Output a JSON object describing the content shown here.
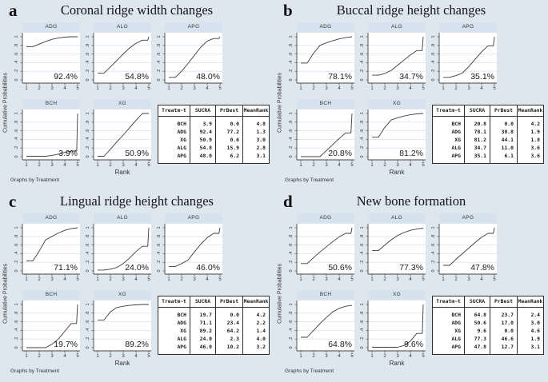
{
  "figure": {
    "ylabel": "Cumulative Probabilities",
    "xlabel": "Rank",
    "footnote": "Graphs by Treatment",
    "table_headers": [
      "Treatm~t",
      "SUCRA",
      "PrBest",
      "MeanRank"
    ],
    "x_ticks": [
      "1",
      "2",
      "3",
      "4",
      "5"
    ],
    "y_ticks": [
      "0",
      ".2",
      ".4",
      ".6",
      ".8",
      "1"
    ],
    "colors": {
      "background": "#dee7ee",
      "subplot_header": "#d6e3ee",
      "plot_background": "#ffffff",
      "gridline": "#dce8f3",
      "curve": "#3c3c3c",
      "axis": "#444444",
      "table_border": "#2e2e2e"
    }
  },
  "chart_data": [
    {
      "type": "line",
      "letter": "a",
      "title": "Coronal ridge width changes",
      "xlabel": "Rank",
      "ylabel": "Cumulative Probabilities",
      "xlim": [
        1,
        5
      ],
      "ylim": [
        0,
        1
      ],
      "grid": true,
      "subplots": [
        {
          "name": "ADG",
          "pct": "92.4%",
          "points": [
            [
              1,
              0.77
            ],
            [
              1.5,
              0.77
            ],
            [
              2,
              0.83
            ],
            [
              2.5,
              0.89
            ],
            [
              3,
              0.94
            ],
            [
              3.5,
              0.97
            ],
            [
              4,
              0.99
            ],
            [
              4.5,
              1
            ],
            [
              5,
              1
            ]
          ]
        },
        {
          "name": "ALG",
          "pct": "54.8%",
          "points": [
            [
              1,
              0.16
            ],
            [
              1.5,
              0.16
            ],
            [
              2,
              0.3
            ],
            [
              2.5,
              0.45
            ],
            [
              3,
              0.6
            ],
            [
              3.5,
              0.74
            ],
            [
              4,
              0.85
            ],
            [
              4.5,
              0.92
            ],
            [
              4.92,
              0.92
            ],
            [
              5,
              1
            ]
          ]
        },
        {
          "name": "APG",
          "pct": "48.0%",
          "points": [
            [
              1,
              0.06
            ],
            [
              1.5,
              0.06
            ],
            [
              2,
              0.2
            ],
            [
              2.5,
              0.38
            ],
            [
              3,
              0.57
            ],
            [
              3.5,
              0.76
            ],
            [
              4,
              0.9
            ],
            [
              4.5,
              0.96
            ],
            [
              4.92,
              0.96
            ],
            [
              5,
              1
            ]
          ]
        },
        {
          "name": "BCH",
          "pct": "3.9%",
          "points": [
            [
              1,
              0.01
            ],
            [
              2.5,
              0.01
            ],
            [
              3,
              0.03
            ],
            [
              3.5,
              0.06
            ],
            [
              4,
              0.1
            ],
            [
              4.5,
              0.13
            ],
            [
              4.93,
              0.13
            ],
            [
              5,
              1
            ]
          ]
        },
        {
          "name": "XG",
          "pct": "50.9%",
          "points": [
            [
              1,
              0.01
            ],
            [
              1.5,
              0.01
            ],
            [
              2,
              0.17
            ],
            [
              2.5,
              0.34
            ],
            [
              3,
              0.5
            ],
            [
              3.5,
              0.67
            ],
            [
              4,
              0.84
            ],
            [
              4.5,
              1
            ],
            [
              5,
              1
            ]
          ]
        }
      ],
      "table": {
        "rows": [
          [
            "BCH",
            "3.9",
            "0.0",
            "4.8"
          ],
          [
            "ADG",
            "92.4",
            "77.2",
            "1.3"
          ],
          [
            "XG",
            "50.9",
            "0.6",
            "3.0"
          ],
          [
            "ALG",
            "54.8",
            "15.9",
            "2.8"
          ],
          [
            "APG",
            "48.0",
            "6.2",
            "3.1"
          ]
        ]
      }
    },
    {
      "type": "line",
      "letter": "b",
      "title": "Buccal ridge height changes",
      "xlabel": "Rank",
      "ylabel": "Cumulative Probabilities",
      "xlim": [
        1,
        5
      ],
      "ylim": [
        0,
        1
      ],
      "grid": true,
      "subplots": [
        {
          "name": "ADG",
          "pct": "78.1%",
          "points": [
            [
              1,
              0.39
            ],
            [
              1.5,
              0.39
            ],
            [
              2,
              0.62
            ],
            [
              2.5,
              0.8
            ],
            [
              3,
              0.86
            ],
            [
              3.5,
              0.91
            ],
            [
              4,
              0.95
            ],
            [
              4.5,
              0.98
            ],
            [
              5,
              1
            ]
          ]
        },
        {
          "name": "ALG",
          "pct": "34.7%",
          "points": [
            [
              1,
              0.11
            ],
            [
              1.5,
              0.11
            ],
            [
              2,
              0.15
            ],
            [
              2.5,
              0.22
            ],
            [
              3,
              0.34
            ],
            [
              3.5,
              0.46
            ],
            [
              4,
              0.58
            ],
            [
              4.5,
              0.68
            ],
            [
              4.92,
              0.68
            ],
            [
              5,
              1
            ]
          ]
        },
        {
          "name": "APG",
          "pct": "35.1%",
          "points": [
            [
              1,
              0.06
            ],
            [
              1.5,
              0.06
            ],
            [
              2,
              0.1
            ],
            [
              2.5,
              0.16
            ],
            [
              3,
              0.31
            ],
            [
              3.5,
              0.48
            ],
            [
              4,
              0.65
            ],
            [
              4.5,
              0.79
            ],
            [
              4.92,
              0.79
            ],
            [
              5,
              1
            ]
          ]
        },
        {
          "name": "BCH",
          "pct": "20.8%",
          "points": [
            [
              1,
              0
            ],
            [
              2.5,
              0
            ],
            [
              3,
              0.14
            ],
            [
              3.5,
              0.28
            ],
            [
              4,
              0.42
            ],
            [
              4.5,
              0.55
            ],
            [
              4.92,
              0.55
            ],
            [
              5,
              1
            ]
          ]
        },
        {
          "name": "XG",
          "pct": "81.2%",
          "points": [
            [
              1,
              0.45
            ],
            [
              1.5,
              0.45
            ],
            [
              2,
              0.68
            ],
            [
              2.5,
              0.85
            ],
            [
              3,
              0.9
            ],
            [
              3.5,
              0.94
            ],
            [
              4,
              0.97
            ],
            [
              4.5,
              0.99
            ],
            [
              5,
              1
            ]
          ]
        }
      ],
      "table": {
        "rows": [
          [
            "BCH",
            "20.8",
            "0.0",
            "4.2"
          ],
          [
            "ADG",
            "78.1",
            "38.8",
            "1.9"
          ],
          [
            "XG",
            "81.2",
            "44.1",
            "1.8"
          ],
          [
            "ALG",
            "34.7",
            "11.0",
            "3.6"
          ],
          [
            "APG",
            "35.1",
            "6.1",
            "3.6"
          ]
        ]
      }
    },
    {
      "type": "line",
      "letter": "c",
      "title": "Lingual ridge height changes",
      "xlabel": "Rank",
      "ylabel": "Cumulative Probabilities",
      "xlim": [
        1,
        5
      ],
      "ylim": [
        0,
        1
      ],
      "grid": true,
      "subplots": [
        {
          "name": "ADG",
          "pct": "71.1%",
          "points": [
            [
              1,
              0.23
            ],
            [
              1.5,
              0.23
            ],
            [
              2,
              0.46
            ],
            [
              2.5,
              0.72
            ],
            [
              3,
              0.8
            ],
            [
              3.5,
              0.88
            ],
            [
              4,
              0.94
            ],
            [
              4.5,
              0.98
            ],
            [
              5,
              1
            ]
          ]
        },
        {
          "name": "ALG",
          "pct": "24.0%",
          "points": [
            [
              1,
              0.02
            ],
            [
              1.5,
              0.02
            ],
            [
              2,
              0.04
            ],
            [
              2.5,
              0.08
            ],
            [
              3,
              0.17
            ],
            [
              3.5,
              0.3
            ],
            [
              4,
              0.45
            ],
            [
              4.5,
              0.57
            ],
            [
              4.92,
              0.57
            ],
            [
              5,
              1
            ]
          ]
        },
        {
          "name": "APG",
          "pct": "46.0%",
          "points": [
            [
              1,
              0.1
            ],
            [
              1.5,
              0.1
            ],
            [
              2,
              0.17
            ],
            [
              2.5,
              0.25
            ],
            [
              3,
              0.44
            ],
            [
              3.5,
              0.62
            ],
            [
              4,
              0.77
            ],
            [
              4.5,
              0.87
            ],
            [
              4.92,
              0.87
            ],
            [
              5,
              1
            ]
          ]
        },
        {
          "name": "BCH",
          "pct": "19.7%",
          "points": [
            [
              1,
              0
            ],
            [
              2.5,
              0
            ],
            [
              3,
              0.08
            ],
            [
              3.5,
              0.2
            ],
            [
              4,
              0.38
            ],
            [
              4.5,
              0.56
            ],
            [
              4.92,
              0.56
            ],
            [
              5,
              1
            ]
          ]
        },
        {
          "name": "XG",
          "pct": "89.2%",
          "points": [
            [
              1,
              0.64
            ],
            [
              1.5,
              0.64
            ],
            [
              2,
              0.83
            ],
            [
              2.5,
              0.93
            ],
            [
              3,
              0.96
            ],
            [
              3.5,
              0.98
            ],
            [
              4,
              0.99
            ],
            [
              4.5,
              1
            ],
            [
              5,
              1
            ]
          ]
        }
      ],
      "table": {
        "rows": [
          [
            "BCH",
            "19.7",
            "0.0",
            "4.2"
          ],
          [
            "ADG",
            "71.1",
            "23.4",
            "2.2"
          ],
          [
            "XG",
            "89.2",
            "64.2",
            "1.4"
          ],
          [
            "ALG",
            "24.0",
            "2.3",
            "4.0"
          ],
          [
            "APG",
            "46.0",
            "10.2",
            "3.2"
          ]
        ]
      }
    },
    {
      "type": "line",
      "letter": "d",
      "title": "New bone formation",
      "xlabel": "Rank",
      "ylabel": "Cumulative Probabilities",
      "xlim": [
        1,
        5
      ],
      "ylim": [
        0,
        1
      ],
      "grid": true,
      "subplots": [
        {
          "name": "ADG",
          "pct": "50.6%",
          "points": [
            [
              1,
              0.17
            ],
            [
              1.5,
              0.17
            ],
            [
              2,
              0.31
            ],
            [
              2.5,
              0.44
            ],
            [
              3,
              0.56
            ],
            [
              3.5,
              0.68
            ],
            [
              4,
              0.79
            ],
            [
              4.5,
              0.87
            ],
            [
              4.92,
              0.87
            ],
            [
              5,
              1
            ]
          ]
        },
        {
          "name": "ALG",
          "pct": "77.3%",
          "points": [
            [
              1,
              0.47
            ],
            [
              1.5,
              0.47
            ],
            [
              2,
              0.6
            ],
            [
              2.5,
              0.72
            ],
            [
              3,
              0.82
            ],
            [
              3.5,
              0.89
            ],
            [
              4,
              0.94
            ],
            [
              4.5,
              0.97
            ],
            [
              5,
              0.99
            ]
          ]
        },
        {
          "name": "APG",
          "pct": "47.8%",
          "points": [
            [
              1,
              0.13
            ],
            [
              1.5,
              0.13
            ],
            [
              2,
              0.27
            ],
            [
              2.5,
              0.4
            ],
            [
              3,
              0.53
            ],
            [
              3.5,
              0.66
            ],
            [
              4,
              0.78
            ],
            [
              4.5,
              0.87
            ],
            [
              4.92,
              0.87
            ],
            [
              5,
              1
            ]
          ]
        },
        {
          "name": "BCH",
          "pct": "64.8%",
          "points": [
            [
              1,
              0.24
            ],
            [
              1.5,
              0.24
            ],
            [
              2,
              0.4
            ],
            [
              2.5,
              0.56
            ],
            [
              3,
              0.7
            ],
            [
              3.5,
              0.83
            ],
            [
              4,
              0.91
            ],
            [
              4.5,
              0.96
            ],
            [
              5,
              0.98
            ]
          ]
        },
        {
          "name": "XG",
          "pct": "9.6%",
          "points": [
            [
              1,
              0.01
            ],
            [
              3,
              0.01
            ],
            [
              3.5,
              0.05
            ],
            [
              4,
              0.15
            ],
            [
              4.5,
              0.33
            ],
            [
              4.93,
              0.33
            ],
            [
              5,
              1
            ]
          ]
        }
      ],
      "table": {
        "rows": [
          [
            "BCH",
            "64.8",
            "23.7",
            "2.4"
          ],
          [
            "ADG",
            "50.6",
            "17.0",
            "3.0"
          ],
          [
            "XG",
            "9.6",
            "0.0",
            "4.6"
          ],
          [
            "ALG",
            "77.3",
            "46.6",
            "1.9"
          ],
          [
            "APG",
            "47.8",
            "12.7",
            "3.1"
          ]
        ]
      }
    }
  ]
}
